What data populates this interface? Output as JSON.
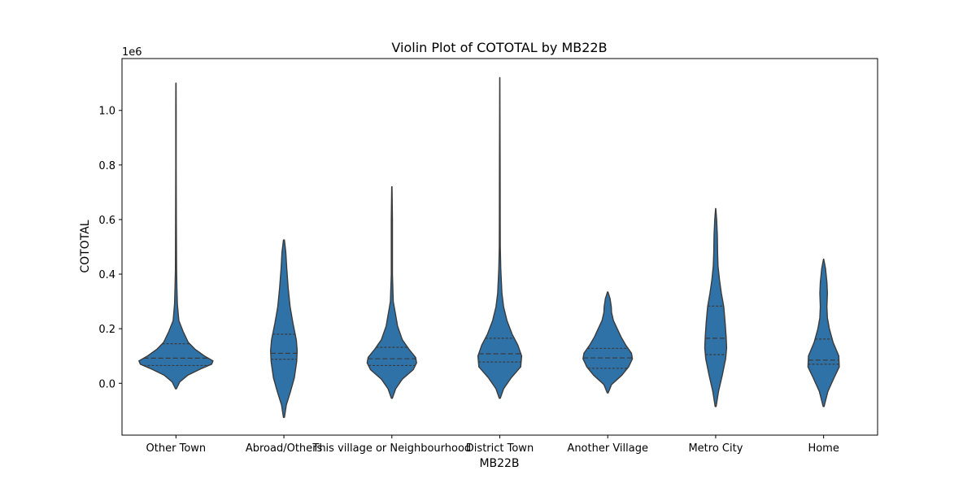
{
  "chart_data": {
    "type": "violin",
    "title": "Violin Plot of COTOTAL by MB22B",
    "xlabel": "MB22B",
    "ylabel": "COTOTAL",
    "y_offset_label": "1e6",
    "ylim": [
      -190000,
      1190000
    ],
    "yticks": [
      0.0,
      0.2,
      0.4,
      0.6,
      0.8,
      1.0
    ],
    "ytick_labels": [
      "0.0",
      "0.2",
      "0.4",
      "0.6",
      "0.8",
      "1.0"
    ],
    "y_scale": 1000000,
    "grid": false,
    "legend": "none",
    "colors": {
      "fill": "#2f72a8",
      "outline": "#3b3b3b",
      "quartile": "#3b3b3b"
    },
    "categories": [
      "Other Town",
      "Abroad/Others",
      "This village or Neighbourhood",
      "District Town",
      "Another Village",
      "Metro City",
      "Home"
    ],
    "violins": [
      {
        "category": "Other Town",
        "min": -20000,
        "max": 1100000,
        "q1": 65000,
        "median": 92000,
        "q3": 145000,
        "profile": [
          [
            -20000,
            0.01
          ],
          [
            5000,
            0.08
          ],
          [
            30000,
            0.25
          ],
          [
            55000,
            0.55
          ],
          [
            70000,
            0.75
          ],
          [
            82000,
            0.78
          ],
          [
            100000,
            0.6
          ],
          [
            125000,
            0.4
          ],
          [
            150000,
            0.26
          ],
          [
            190000,
            0.15
          ],
          [
            230000,
            0.06
          ],
          [
            290000,
            0.03
          ],
          [
            350000,
            0.02
          ],
          [
            420000,
            0.012
          ],
          [
            600000,
            0.008
          ],
          [
            800000,
            0.005
          ],
          [
            1000000,
            0.004
          ],
          [
            1100000,
            0.002
          ]
        ]
      },
      {
        "category": "Abroad/Others",
        "min": -125000,
        "max": 525000,
        "q1": 88000,
        "median": 110000,
        "q3": 180000,
        "profile": [
          [
            -125000,
            0.01
          ],
          [
            -80000,
            0.05
          ],
          [
            -30000,
            0.14
          ],
          [
            20000,
            0.22
          ],
          [
            80000,
            0.27
          ],
          [
            120000,
            0.28
          ],
          [
            160000,
            0.26
          ],
          [
            220000,
            0.19
          ],
          [
            280000,
            0.13
          ],
          [
            350000,
            0.09
          ],
          [
            420000,
            0.06
          ],
          [
            480000,
            0.04
          ],
          [
            525000,
            0.01
          ]
        ]
      },
      {
        "category": "This village or Neighbourhood",
        "min": -55000,
        "max": 720000,
        "q1": 65000,
        "median": 90000,
        "q3": 132000,
        "profile": [
          [
            -55000,
            0.01
          ],
          [
            -20000,
            0.08
          ],
          [
            15000,
            0.22
          ],
          [
            50000,
            0.45
          ],
          [
            75000,
            0.52
          ],
          [
            95000,
            0.5
          ],
          [
            125000,
            0.36
          ],
          [
            160000,
            0.22
          ],
          [
            210000,
            0.12
          ],
          [
            270000,
            0.06
          ],
          [
            300000,
            0.03
          ],
          [
            400000,
            0.012
          ],
          [
            500000,
            0.012
          ],
          [
            600000,
            0.012
          ],
          [
            720000,
            0.003
          ]
        ]
      },
      {
        "category": "District Town",
        "min": -55000,
        "max": 1120000,
        "q1": 78000,
        "median": 108000,
        "q3": 165000,
        "profile": [
          [
            -55000,
            0.01
          ],
          [
            -20000,
            0.08
          ],
          [
            20000,
            0.24
          ],
          [
            60000,
            0.44
          ],
          [
            100000,
            0.46
          ],
          [
            140000,
            0.38
          ],
          [
            180000,
            0.26
          ],
          [
            230000,
            0.15
          ],
          [
            280000,
            0.08
          ],
          [
            330000,
            0.045
          ],
          [
            420000,
            0.02
          ],
          [
            500000,
            0.01
          ],
          [
            600000,
            0.008
          ],
          [
            800000,
            0.006
          ],
          [
            1000000,
            0.004
          ],
          [
            1120000,
            0.002
          ]
        ]
      },
      {
        "category": "Another Village",
        "min": -35000,
        "max": 335000,
        "q1": 55000,
        "median": 93000,
        "q3": 128000,
        "profile": [
          [
            -35000,
            0.01
          ],
          [
            -5000,
            0.08
          ],
          [
            30000,
            0.3
          ],
          [
            60000,
            0.44
          ],
          [
            90000,
            0.52
          ],
          [
            110000,
            0.5
          ],
          [
            140000,
            0.38
          ],
          [
            170000,
            0.28
          ],
          [
            200000,
            0.2
          ],
          [
            230000,
            0.12
          ],
          [
            260000,
            0.08
          ],
          [
            280000,
            0.075
          ],
          [
            310000,
            0.05
          ],
          [
            335000,
            0.005
          ]
        ]
      },
      {
        "category": "Metro City",
        "min": -85000,
        "max": 640000,
        "q1": 105000,
        "median": 165000,
        "q3": 283000,
        "profile": [
          [
            -85000,
            0.01
          ],
          [
            -30000,
            0.06
          ],
          [
            30000,
            0.14
          ],
          [
            90000,
            0.21
          ],
          [
            130000,
            0.23
          ],
          [
            170000,
            0.22
          ],
          [
            220000,
            0.2
          ],
          [
            280000,
            0.17
          ],
          [
            330000,
            0.12
          ],
          [
            380000,
            0.08
          ],
          [
            430000,
            0.05
          ],
          [
            480000,
            0.04
          ],
          [
            540000,
            0.035
          ],
          [
            600000,
            0.02
          ],
          [
            640000,
            0.003
          ]
        ]
      },
      {
        "category": "Home",
        "min": -85000,
        "max": 455000,
        "q1": 70000,
        "median": 85000,
        "q3": 162000,
        "profile": [
          [
            -85000,
            0.01
          ],
          [
            -30000,
            0.09
          ],
          [
            20000,
            0.22
          ],
          [
            60000,
            0.33
          ],
          [
            100000,
            0.32
          ],
          [
            150000,
            0.2
          ],
          [
            200000,
            0.12
          ],
          [
            240000,
            0.08
          ],
          [
            280000,
            0.07
          ],
          [
            330000,
            0.08
          ],
          [
            370000,
            0.07
          ],
          [
            420000,
            0.04
          ],
          [
            455000,
            0.003
          ]
        ]
      }
    ]
  }
}
